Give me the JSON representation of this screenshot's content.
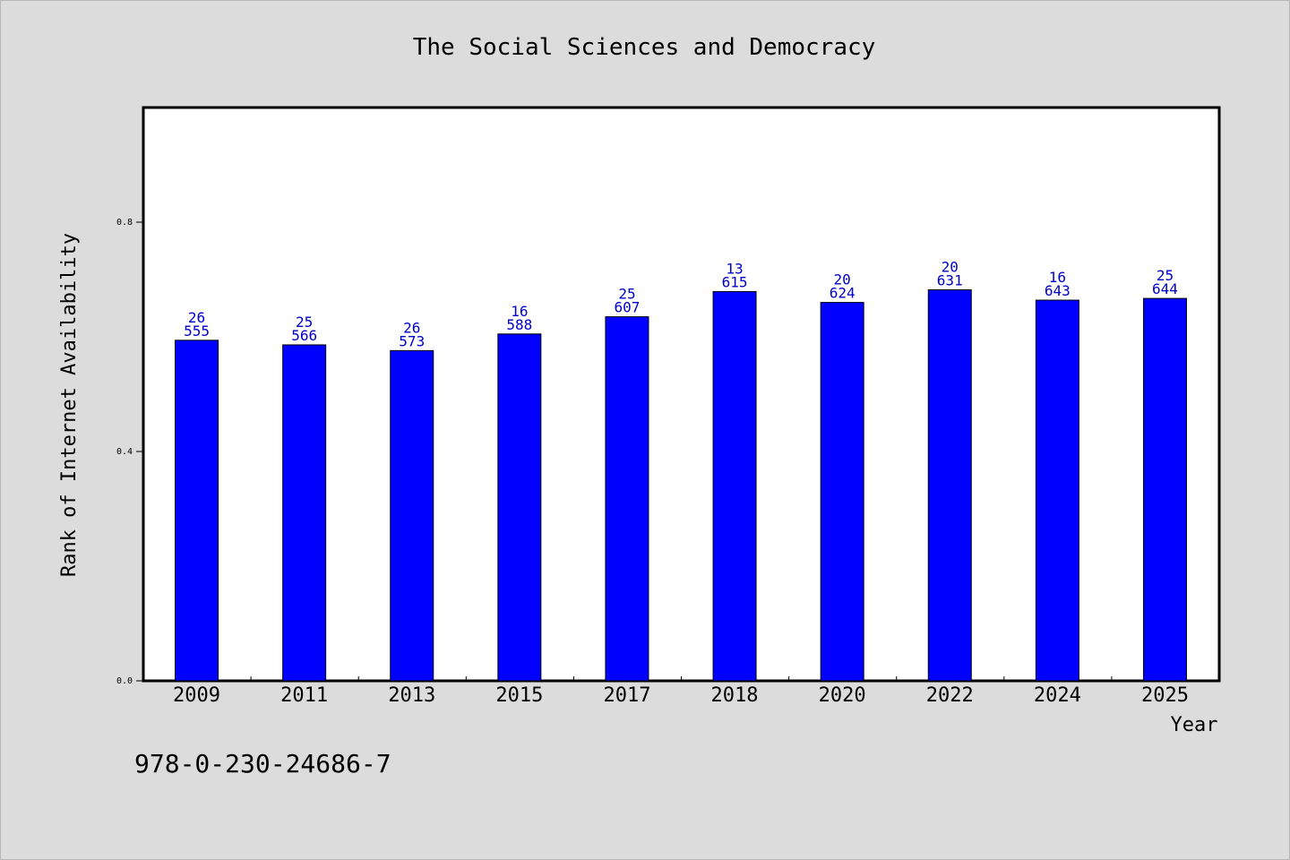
{
  "chart_data": {
    "type": "bar",
    "title": "The Social Sciences and Democracy",
    "xlabel": "Year",
    "ylabel": "Rank of Internet Availability",
    "categories": [
      "2009",
      "2011",
      "2013",
      "2015",
      "2017",
      "2018",
      "2020",
      "2022",
      "2024",
      "2025"
    ],
    "values": [
      0.594,
      0.586,
      0.576,
      0.605,
      0.635,
      0.679,
      0.66,
      0.682,
      0.664,
      0.667
    ],
    "labels_top": [
      "26",
      "25",
      "26",
      "16",
      "25",
      "13",
      "20",
      "20",
      "16",
      "25"
    ],
    "labels_bottom": [
      "555",
      "566",
      "573",
      "588",
      "607",
      "615",
      "624",
      "631",
      "643",
      "644"
    ],
    "ylim": [
      0,
      1.0
    ],
    "yticks": [
      0.0,
      0.4,
      0.8
    ],
    "ytick_labels": [
      "0.0",
      "0.4",
      "0.8"
    ],
    "grid": false,
    "colors": {
      "bar": "#0000ff",
      "bar_edge": "#000000",
      "data_label": "#0000cc"
    }
  },
  "footer": {
    "isbn": "978-0-230-24686-7"
  }
}
